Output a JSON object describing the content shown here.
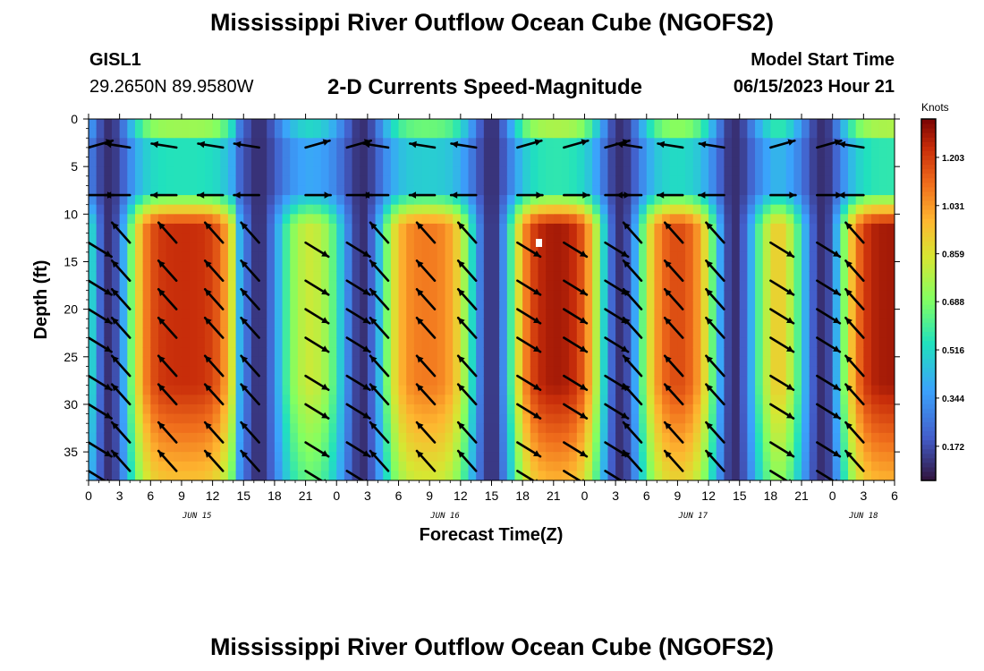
{
  "header": {
    "title": "Mississippi River Outflow Ocean Cube (NGOFS2)",
    "station_id": "GISL1",
    "station_coords": "29.2650N  89.9580W",
    "subtitle": "2-D Currents Speed-Magnitude",
    "model_start_label": "Model Start Time",
    "model_start_value": "06/15/2023 Hour 21"
  },
  "footer": {
    "title": "Mississippi River Outflow Ocean Cube (NGOFS2)"
  },
  "chart_data": {
    "type": "heatmap",
    "title": "2-D Currents Speed-Magnitude",
    "xlabel": "Forecast Time(Z)",
    "ylabel": "Depth (ft)",
    "x_range_hours": [
      0,
      78
    ],
    "ylim": [
      0,
      38
    ],
    "y_inverted": true,
    "x_tick_labels": [
      "0",
      "3",
      "6",
      "9",
      "12",
      "15",
      "18",
      "21",
      "0",
      "3",
      "6",
      "9",
      "12",
      "15",
      "18",
      "21",
      "0",
      "3",
      "6",
      "9",
      "12",
      "15",
      "18",
      "21",
      "0",
      "3",
      "6"
    ],
    "x_tick_hours": [
      0,
      3,
      6,
      9,
      12,
      15,
      18,
      21,
      24,
      27,
      30,
      33,
      36,
      39,
      42,
      45,
      48,
      51,
      54,
      57,
      60,
      63,
      66,
      69,
      72,
      75,
      78
    ],
    "y_ticks": [
      0,
      5,
      10,
      15,
      20,
      25,
      30,
      35
    ],
    "date_labels": [
      {
        "text": "JUN 15",
        "hour": 10.5
      },
      {
        "text": "JUN 16",
        "hour": 34.5
      },
      {
        "text": "JUN 17",
        "hour": 58.5
      },
      {
        "text": "JUN 18",
        "hour": 75
      }
    ],
    "colorbar": {
      "unit": "Knots",
      "ticks": [
        0.172,
        0.344,
        0.516,
        0.688,
        0.859,
        1.031,
        1.203
      ],
      "range": [
        0.05,
        1.34
      ]
    },
    "speed_peaks_hours": [
      8.5,
      19.8,
      32.5,
      44.5,
      55.8,
      67.5,
      76.5
    ],
    "speed_peak_max_knots": [
      1.2,
      0.8,
      1.05,
      1.25,
      1.15,
      0.95,
      1.25
    ],
    "slack_hours": [
      2,
      16.5,
      26.5,
      39,
      51.5,
      62.5,
      71
    ],
    "vector_columns_hours": [
      0,
      4,
      8.5,
      13,
      16.5,
      21,
      25,
      29,
      33.5,
      37.5,
      41.5,
      46,
      50,
      53.5,
      57.5,
      61.5,
      66,
      70.5,
      75
    ],
    "vector_rows_ft": [
      3,
      8,
      13,
      17,
      20,
      23,
      27,
      30,
      34,
      37
    ]
  }
}
